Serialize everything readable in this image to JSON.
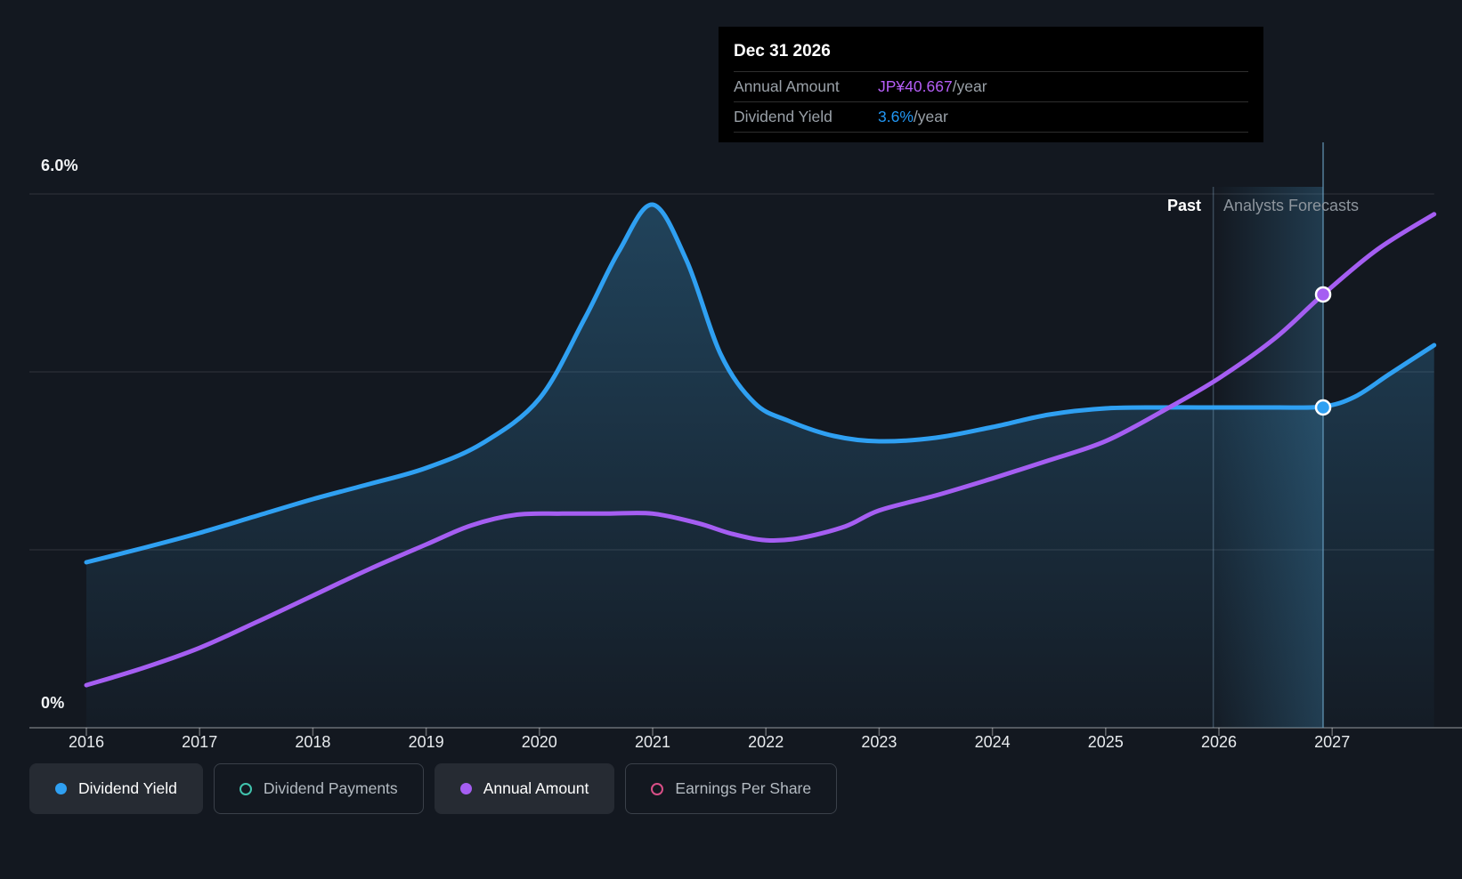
{
  "tooltip": {
    "title": "Dec 31 2026",
    "rows": [
      {
        "label": "Annual Amount",
        "value": "JP¥40.667",
        "suffix": "/year",
        "value_color": "#b55ef7"
      },
      {
        "label": "Dividend Yield",
        "value": "3.6%",
        "suffix": "/year",
        "value_color": "#2196f3"
      }
    ]
  },
  "axis": {
    "y_top_label": "6.0%",
    "y_bottom_label": "0%",
    "x_labels": [
      "2016",
      "2017",
      "2018",
      "2019",
      "2020",
      "2021",
      "2022",
      "2023",
      "2024",
      "2025",
      "2026",
      "2027"
    ]
  },
  "annotations": {
    "past": "Past",
    "forecast": "Analysts Forecasts"
  },
  "legend": [
    {
      "label": "Dividend Yield",
      "marker": "filled",
      "color": "#2fa0f2",
      "active": true
    },
    {
      "label": "Dividend Payments",
      "marker": "ring",
      "color": "#41c4ae",
      "active": false
    },
    {
      "label": "Annual Amount",
      "marker": "filled",
      "color": "#a55ef2",
      "active": true
    },
    {
      "label": "Earnings Per Share",
      "marker": "ring",
      "color": "#d94f87",
      "active": false
    }
  ],
  "chart_data": {
    "type": "area",
    "title": "Dividend Yield vs Annual Amount, past and analyst forecasts",
    "x_range": [
      2016,
      2027.9
    ],
    "y_range_percent": [
      0,
      6
    ],
    "y2_range_yen": [
      0,
      50.1
    ],
    "gridlines_percent": [
      2,
      4,
      6
    ],
    "grid_on": true,
    "legend_position": "bottom",
    "past_forecast_divider_x": 2025.95,
    "marker_x": 2026.92,
    "marker_values": {
      "annual_amount_jpy": 40.667,
      "dividend_yield_percent": 3.6
    },
    "series": [
      {
        "name": "Dividend Yield",
        "unit": "%",
        "color": "#2fa0f2",
        "fill": true,
        "x": [
          2016,
          2016.5,
          2017,
          2017.5,
          2018,
          2018.5,
          2019,
          2019.5,
          2020,
          2020.4,
          2020.7,
          2021,
          2021.3,
          2021.6,
          2021.9,
          2022.2,
          2022.6,
          2023,
          2023.5,
          2024,
          2024.5,
          2025,
          2025.5,
          2026,
          2026.5,
          2026.92,
          2027.2,
          2027.5,
          2027.9
        ],
        "y": [
          1.86,
          2.02,
          2.19,
          2.38,
          2.57,
          2.74,
          2.92,
          3.2,
          3.7,
          4.6,
          5.35,
          5.88,
          5.25,
          4.2,
          3.65,
          3.45,
          3.28,
          3.22,
          3.26,
          3.38,
          3.52,
          3.59,
          3.6,
          3.6,
          3.6,
          3.61,
          3.72,
          3.97,
          4.3
        ]
      },
      {
        "name": "Annual Amount",
        "unit": "JP¥/year",
        "color": "#a55ef2",
        "fill": false,
        "x": [
          2016,
          2016.5,
          2017,
          2017.5,
          2018,
          2018.5,
          2019,
          2019.4,
          2019.8,
          2020.2,
          2020.6,
          2021,
          2021.4,
          2021.7,
          2022,
          2022.3,
          2022.7,
          2023,
          2023.5,
          2024,
          2024.5,
          2025,
          2025.5,
          2026,
          2026.5,
          2026.92,
          2027.4,
          2027.9
        ],
        "y": [
          4.0,
          5.6,
          7.5,
          9.9,
          12.4,
          14.9,
          17.2,
          19.0,
          20.0,
          20.1,
          20.1,
          20.1,
          19.2,
          18.2,
          17.6,
          17.8,
          18.9,
          20.4,
          21.8,
          23.4,
          25.1,
          26.9,
          29.7,
          32.8,
          36.6,
          40.667,
          44.9,
          48.2
        ]
      }
    ]
  },
  "colors": {
    "background": "#131820",
    "grid": "rgba(255,255,255,0.09)",
    "axis_zero": "rgba(255,255,255,0.28)",
    "tick": "rgba(255,255,255,0.35)",
    "divider": "rgba(140,180,210,0.33)",
    "marker_line": "rgba(110,165,200,0.55)",
    "band_strong": "rgba(64,140,185,0.30)",
    "area_top": "rgba(59,150,205,0.34)",
    "area_bottom": "rgba(59,150,205,0.03)"
  }
}
